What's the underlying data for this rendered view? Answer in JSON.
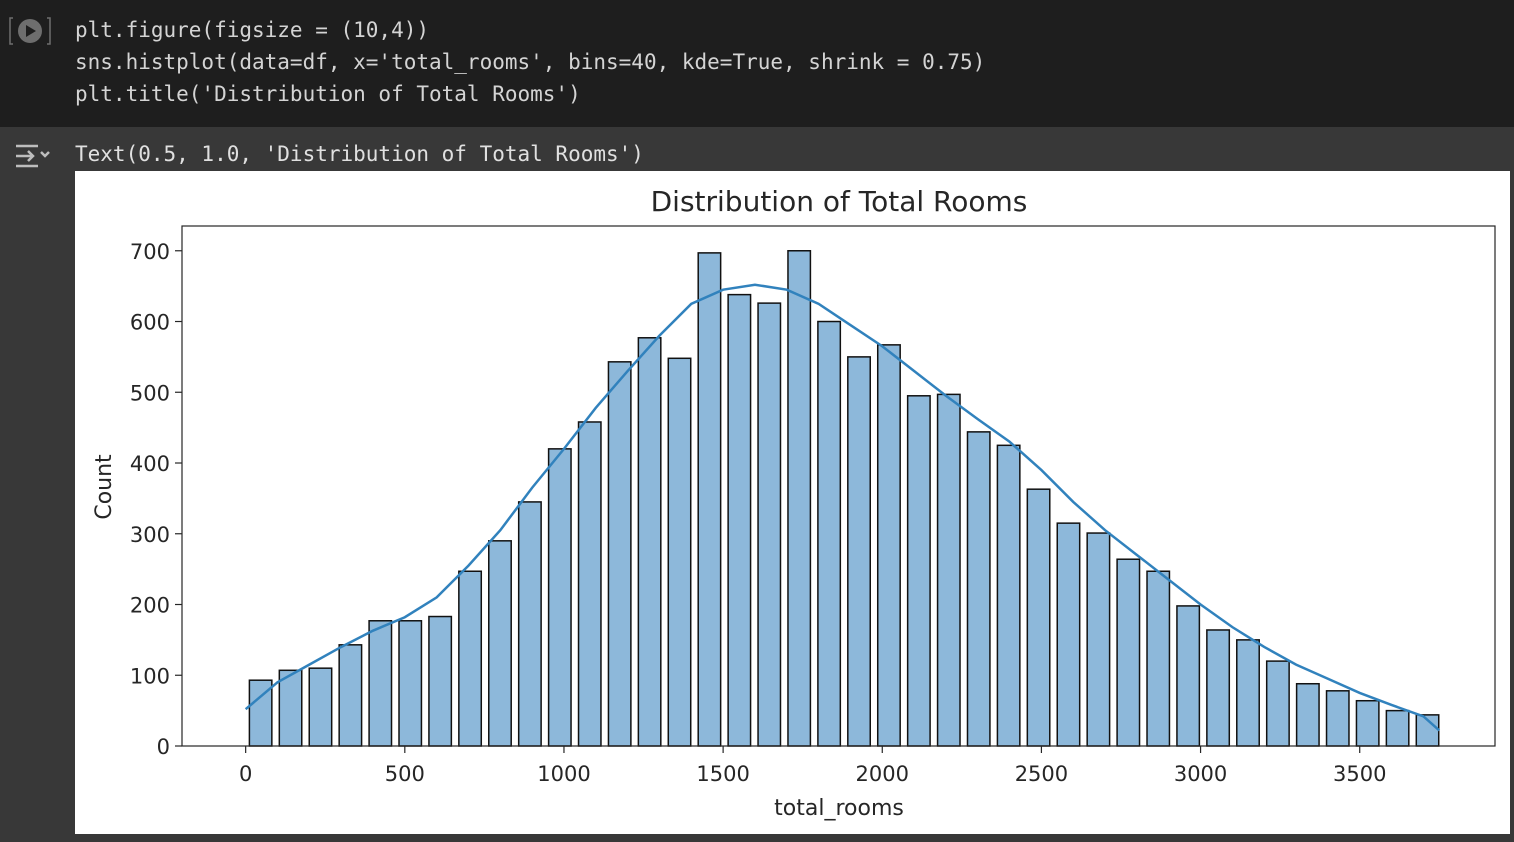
{
  "code_cell": {
    "lines": [
      "plt.figure(figsize = (10,4))",
      "sns.histplot(data=df, x='total_rooms', bins=40, kde=True, shrink = 0.75)",
      "plt.title('Distribution of Total Rooms')"
    ]
  },
  "output": {
    "text": "Text(0.5, 1.0, 'Distribution of Total Rooms')"
  },
  "icons": {
    "run": "play-circle-icon",
    "output_toggle": "output-collapse-icon"
  },
  "colors": {
    "bar_fill": "#8db8da",
    "bar_edge": "#111111",
    "kde_line": "#3182bd"
  },
  "chart_data": {
    "type": "bar",
    "title": "Distribution of Total Rooms",
    "xlabel": "total_rooms",
    "ylabel": "Count",
    "xlim": [
      -200,
      3925
    ],
    "ylim": [
      0,
      735
    ],
    "xticks": [
      0,
      500,
      1000,
      1500,
      2000,
      2500,
      3000,
      3500
    ],
    "yticks": [
      0,
      100,
      200,
      300,
      400,
      500,
      600,
      700
    ],
    "bin_start": 0,
    "bin_width": 94,
    "shrink": 0.75,
    "values": [
      93,
      107,
      110,
      143,
      177,
      177,
      183,
      247,
      290,
      345,
      420,
      458,
      543,
      577,
      548,
      697,
      638,
      626,
      700,
      600,
      550,
      567,
      495,
      497,
      444,
      425,
      363,
      315,
      301,
      264,
      247,
      198,
      164,
      150,
      120,
      88,
      78,
      64,
      50,
      44
    ],
    "kde": {
      "x": [
        0,
        100,
        200,
        300,
        400,
        500,
        600,
        700,
        800,
        900,
        1000,
        1100,
        1200,
        1300,
        1400,
        1500,
        1600,
        1700,
        1800,
        1900,
        2000,
        2100,
        2200,
        2300,
        2400,
        2500,
        2600,
        2700,
        2800,
        2900,
        3000,
        3100,
        3200,
        3300,
        3400,
        3500,
        3600,
        3700,
        3750
      ],
      "y": [
        52,
        90,
        115,
        140,
        163,
        182,
        210,
        255,
        305,
        365,
        420,
        478,
        530,
        580,
        625,
        645,
        652,
        645,
        625,
        595,
        565,
        530,
        495,
        462,
        430,
        390,
        345,
        305,
        270,
        235,
        200,
        168,
        140,
        115,
        95,
        75,
        58,
        42,
        22
      ]
    }
  }
}
